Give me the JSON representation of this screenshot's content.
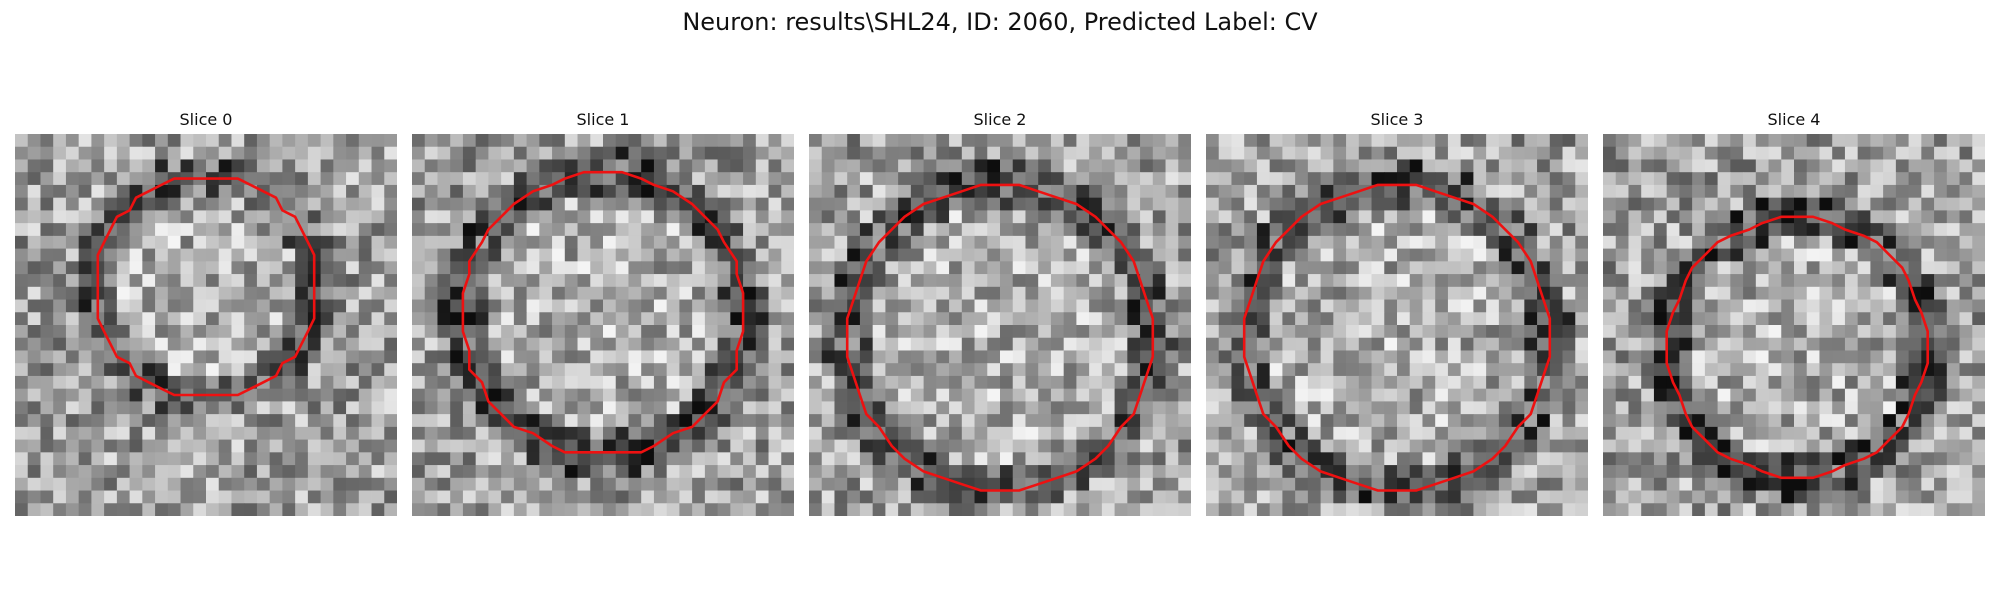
{
  "figure": {
    "title": "Neuron: results\\SHL24, ID: 2060, Predicted Label: CV"
  },
  "panels": [
    {
      "title": "Slice 0",
      "seed": 11,
      "contour_radius": 0.29,
      "contour_cx": 0.5,
      "contour_cy": 0.4,
      "ring_darkness": 0.25
    },
    {
      "title": "Slice 1",
      "seed": 23,
      "contour_radius": 0.37,
      "contour_cx": 0.5,
      "contour_cy": 0.47,
      "ring_darkness": 0.35
    },
    {
      "title": "Slice 2",
      "seed": 37,
      "contour_radius": 0.4,
      "contour_cx": 0.5,
      "contour_cy": 0.53,
      "ring_darkness": 0.3
    },
    {
      "title": "Slice 3",
      "seed": 51,
      "contour_radius": 0.4,
      "contour_cx": 0.5,
      "contour_cy": 0.53,
      "ring_darkness": 0.3
    },
    {
      "title": "Slice 4",
      "seed": 67,
      "contour_radius": 0.34,
      "contour_cx": 0.51,
      "contour_cy": 0.56,
      "ring_darkness": 0.35
    }
  ],
  "colors": {
    "contour": "#ee1111"
  }
}
